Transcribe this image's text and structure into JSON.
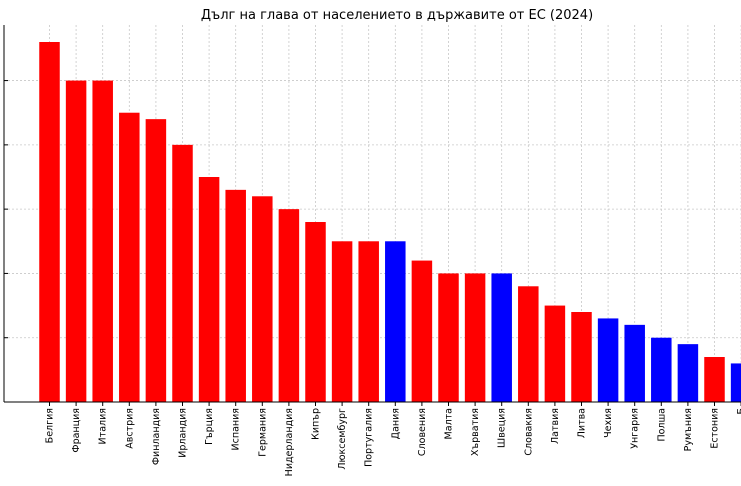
{
  "chart_data": {
    "type": "bar",
    "title": "Дълг на глава от населението в държавите от ЕС (2024)",
    "xlabel": "",
    "ylabel": "",
    "ylim": [
      0,
      56
    ],
    "grid": true,
    "categories": [
      "Белгия",
      "Франция",
      "Италия",
      "Австрия",
      "Финландия",
      "Ирландия",
      "Гърция",
      "Испания",
      "Германия",
      "Нидерландия",
      "Кипър",
      "Люксембург",
      "Португалия",
      "Дания",
      "Словения",
      "Малта",
      "Хърватия",
      "Швеция",
      "Словакия",
      "Латвия",
      "Литва",
      "Чехия",
      "Унгария",
      "Полша",
      "Румъния",
      "Естония",
      "Б"
    ],
    "values": [
      56,
      50,
      50,
      45,
      44,
      40,
      35,
      33,
      32,
      30,
      28,
      25,
      25,
      25,
      22,
      20,
      20,
      20,
      18,
      15,
      14,
      13,
      12,
      10,
      9,
      7,
      6
    ],
    "bar_colors": [
      "#ff0000",
      "#ff0000",
      "#ff0000",
      "#ff0000",
      "#ff0000",
      "#ff0000",
      "#ff0000",
      "#ff0000",
      "#ff0000",
      "#ff0000",
      "#ff0000",
      "#ff0000",
      "#ff0000",
      "#0000ff",
      "#ff0000",
      "#ff0000",
      "#ff0000",
      "#0000ff",
      "#ff0000",
      "#ff0000",
      "#ff0000",
      "#0000ff",
      "#0000ff",
      "#0000ff",
      "#0000ff",
      "#ff0000",
      "#0000ff"
    ],
    "colors": {
      "grid": "#c8c8c8",
      "axis": "#000000"
    }
  }
}
